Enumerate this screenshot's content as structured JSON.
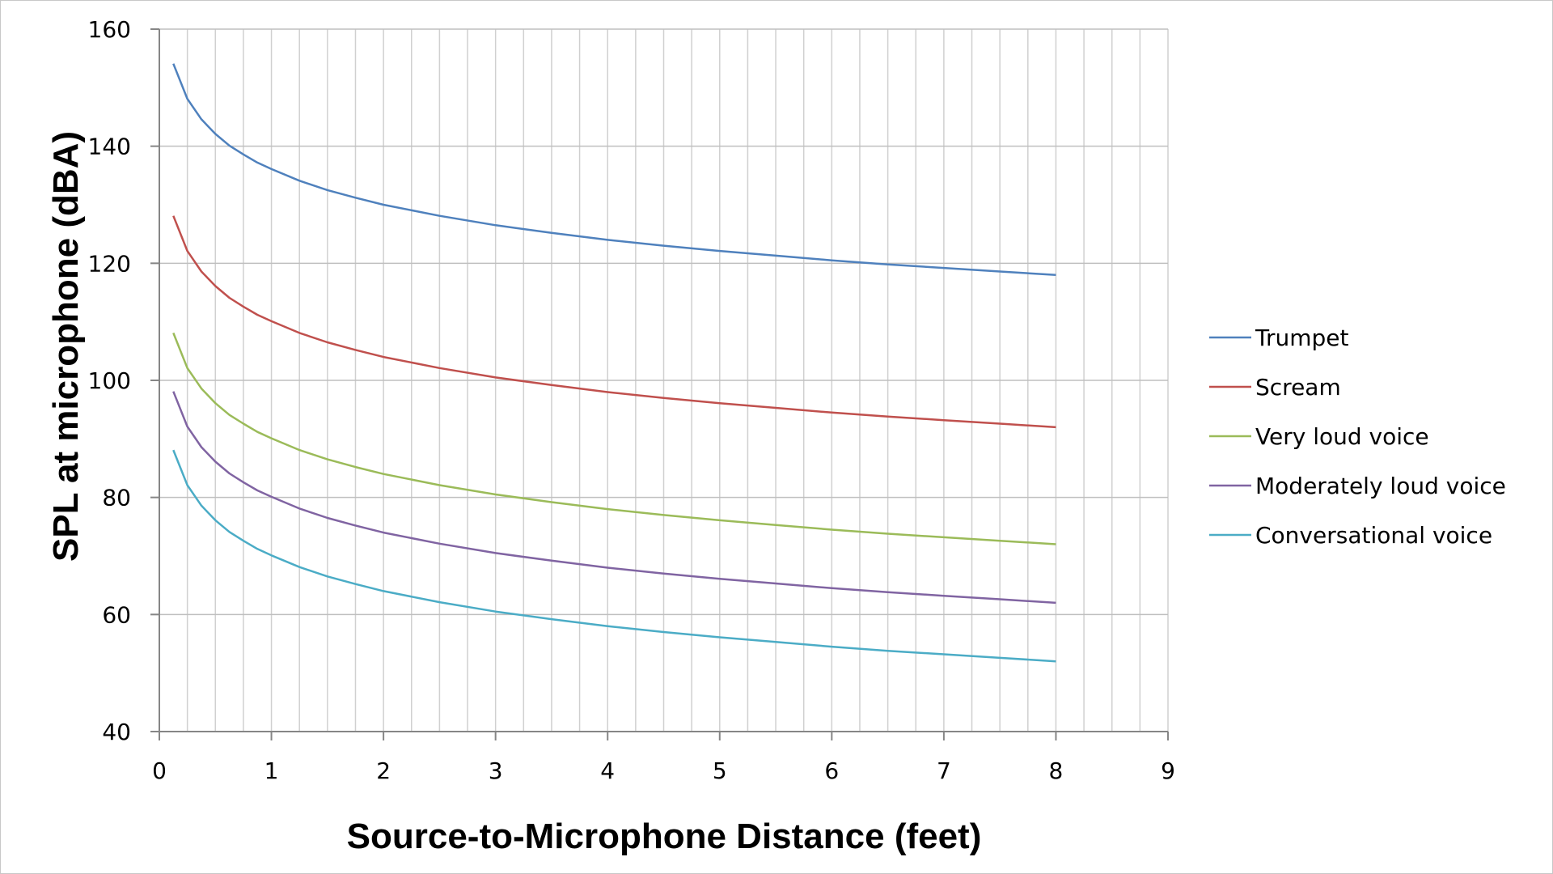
{
  "chart_data": {
    "type": "line",
    "title": "",
    "xlabel": "Source-to-Microphone Distance (feet)",
    "ylabel": "SPL at microphone (dBA)",
    "xlim": [
      0,
      9
    ],
    "ylim": [
      40,
      160
    ],
    "x_ticks": [
      0,
      1,
      2,
      3,
      4,
      5,
      6,
      7,
      8,
      9
    ],
    "y_ticks": [
      40,
      60,
      80,
      100,
      120,
      140,
      160
    ],
    "x_minor_step": 0.25,
    "grid": {
      "major_y": true,
      "minor_x": true
    },
    "legend_position": "right",
    "x": [
      0.125,
      0.25,
      0.375,
      0.5,
      0.625,
      0.75,
      0.875,
      1,
      1.25,
      1.5,
      1.75,
      2,
      2.5,
      3,
      3.5,
      4,
      4.5,
      5,
      5.5,
      6,
      6.5,
      7,
      7.5,
      8
    ],
    "series": [
      {
        "name": "Trumpet",
        "color": "#4F81BD",
        "values": [
          154.1,
          148.1,
          144.6,
          142.1,
          140.1,
          138.6,
          137.2,
          136.1,
          134.1,
          132.5,
          131.2,
          130.0,
          128.1,
          126.5,
          125.2,
          124.0,
          123.0,
          122.1,
          121.3,
          120.5,
          119.8,
          119.2,
          118.6,
          118.0
        ]
      },
      {
        "name": "Scream",
        "color": "#C0504D",
        "values": [
          128.1,
          122.1,
          118.6,
          116.1,
          114.1,
          112.6,
          111.2,
          110.1,
          108.1,
          106.5,
          105.2,
          104.0,
          102.1,
          100.5,
          99.2,
          98.0,
          97.0,
          96.1,
          95.3,
          94.5,
          93.8,
          93.2,
          92.6,
          92.0
        ]
      },
      {
        "name": "Very loud voice",
        "color": "#9BBB59",
        "values": [
          108.1,
          102.1,
          98.6,
          96.1,
          94.1,
          92.6,
          91.2,
          90.1,
          88.1,
          86.5,
          85.2,
          84.0,
          82.1,
          80.5,
          79.2,
          78.0,
          77.0,
          76.1,
          75.3,
          74.5,
          73.8,
          73.2,
          72.6,
          72.0
        ]
      },
      {
        "name": "Moderately loud voice",
        "color": "#8064A2",
        "values": [
          98.1,
          92.1,
          88.6,
          86.1,
          84.1,
          82.6,
          81.2,
          80.1,
          78.1,
          76.5,
          75.2,
          74.0,
          72.1,
          70.5,
          69.2,
          68.0,
          67.0,
          66.1,
          65.3,
          64.5,
          63.8,
          63.2,
          62.6,
          62.0
        ]
      },
      {
        "name": "Conversational voice",
        "color": "#4BACC6",
        "values": [
          88.1,
          82.1,
          78.6,
          76.1,
          74.1,
          72.6,
          71.2,
          70.1,
          68.1,
          66.5,
          65.2,
          64.0,
          62.1,
          60.5,
          59.2,
          58.0,
          57.0,
          56.1,
          55.3,
          54.5,
          53.8,
          53.2,
          52.6,
          52.0
        ]
      }
    ]
  },
  "colors": {
    "gridline": "#d0d0d0",
    "major_gridline": "#bfbfbf",
    "axis": "#868686"
  }
}
